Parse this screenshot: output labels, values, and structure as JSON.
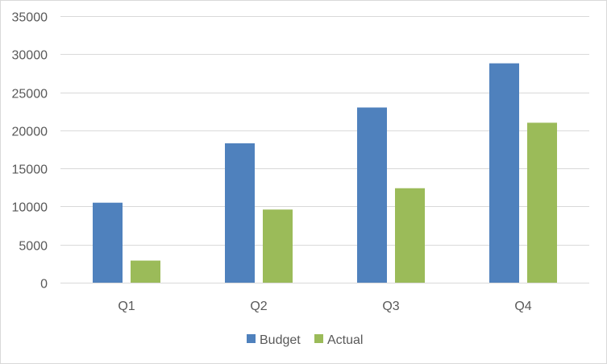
{
  "chart_data": {
    "type": "bar",
    "title": "",
    "xlabel": "",
    "ylabel": "",
    "categories": [
      "Q1",
      "Q2",
      "Q3",
      "Q4"
    ],
    "series": [
      {
        "name": "Budget",
        "values": [
          10500,
          18300,
          23000,
          28800
        ],
        "color": "#4f81bd"
      },
      {
        "name": "Actual",
        "values": [
          2900,
          9600,
          12400,
          21000
        ],
        "color": "#9bbb59"
      }
    ],
    "ylim": [
      0,
      35000
    ],
    "yticks": [
      0,
      5000,
      10000,
      15000,
      20000,
      25000,
      30000,
      35000
    ],
    "grid": true,
    "legend": "bottom"
  }
}
